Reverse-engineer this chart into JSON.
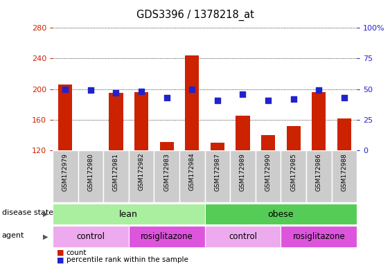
{
  "title": "GDS3396 / 1378218_at",
  "samples": [
    "GSM172979",
    "GSM172980",
    "GSM172981",
    "GSM172982",
    "GSM172983",
    "GSM172984",
    "GSM172987",
    "GSM172989",
    "GSM172990",
    "GSM172985",
    "GSM172986",
    "GSM172988"
  ],
  "counts": [
    206,
    120,
    195,
    196,
    131,
    244,
    130,
    165,
    140,
    152,
    196,
    162
  ],
  "percentiles": [
    50,
    49,
    47,
    48,
    43,
    50,
    41,
    46,
    41,
    42,
    49,
    43
  ],
  "ylim_left": [
    120,
    280
  ],
  "ylim_right": [
    0,
    100
  ],
  "yticks_left": [
    120,
    160,
    200,
    240,
    280
  ],
  "yticks_right": [
    0,
    25,
    50,
    75,
    100
  ],
  "bar_color": "#cc2200",
  "dot_color": "#2222cc",
  "disease_state_groups": [
    {
      "label": "lean",
      "start": 0,
      "end": 6,
      "color": "#aaeea0"
    },
    {
      "label": "obese",
      "start": 6,
      "end": 12,
      "color": "#55cc55"
    }
  ],
  "agent_groups": [
    {
      "label": "control",
      "start": 0,
      "end": 3,
      "color": "#eeaaee"
    },
    {
      "label": "rosiglitazone",
      "start": 3,
      "end": 6,
      "color": "#dd55dd"
    },
    {
      "label": "control",
      "start": 6,
      "end": 9,
      "color": "#eeaaee"
    },
    {
      "label": "rosiglitazone",
      "start": 9,
      "end": 12,
      "color": "#dd55dd"
    }
  ],
  "legend_count_label": "count",
  "legend_pct_label": "percentile rank within the sample",
  "disease_state_label": "disease state",
  "agent_label": "agent",
  "n_samples": 12
}
